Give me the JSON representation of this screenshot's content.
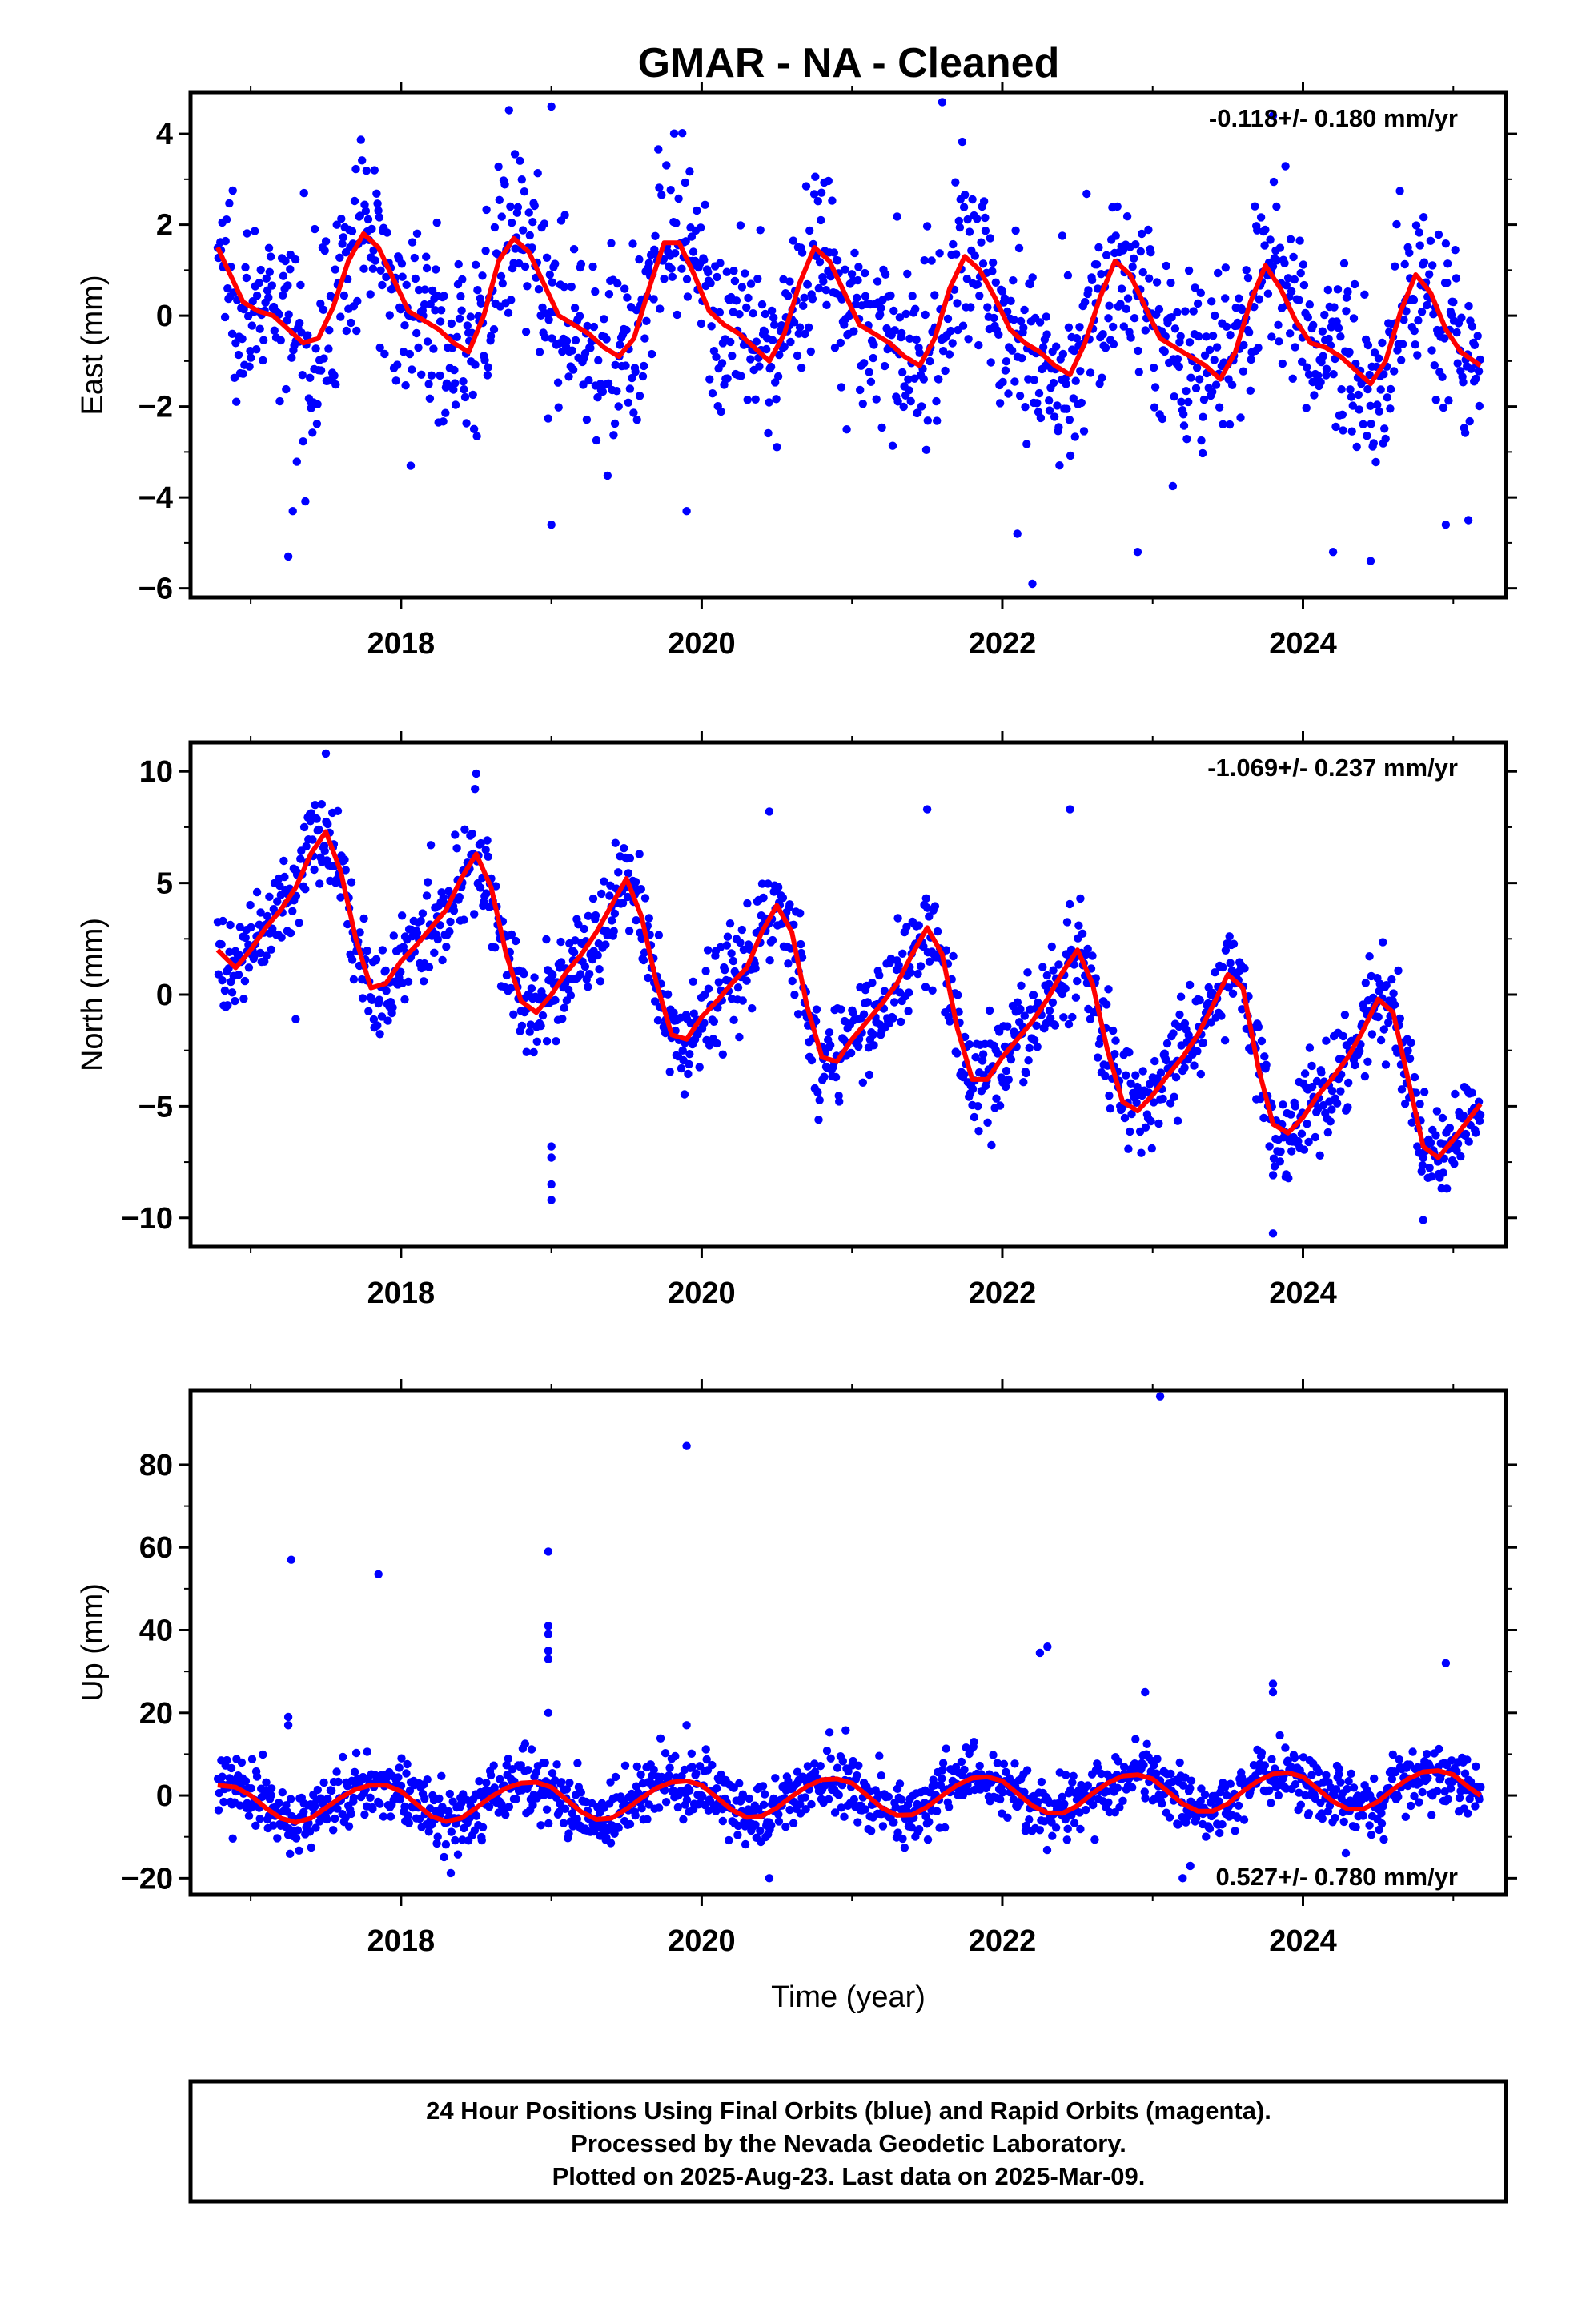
{
  "title": "GMAR  - NA - Cleaned",
  "colors": {
    "points": "#0000ff",
    "fit": "#ff0000",
    "axis": "#000000"
  },
  "footer": {
    "line1": "24 Hour Positions Using Final Orbits (blue) and Rapid Orbits (magenta).",
    "line2": "Processed by the Nevada Geodetic Laboratory.",
    "line3": "Plotted on 2025-Aug-23. Last data on 2025-Mar-09."
  },
  "chart_data": [
    {
      "type": "scatter",
      "component": "east",
      "ylabel": "East (mm)",
      "xlabel": "",
      "rate": "-0.118+/- 0.180 mm/yr",
      "rate_position": "top-right",
      "xlim": [
        2016.6,
        2025.35
      ],
      "ylim": [
        -6.2,
        4.9
      ],
      "xticks": [
        2018,
        2020,
        2022,
        2024
      ],
      "yticks": [
        -6,
        -4,
        -2,
        0,
        2,
        4
      ],
      "ytick_labels": [
        "−6",
        "−4",
        "−2",
        "0",
        "2",
        "4"
      ],
      "fit_line": {
        "x": [
          2016.78,
          2016.85,
          2016.95,
          2017.05,
          2017.15,
          2017.25,
          2017.35,
          2017.45,
          2017.55,
          2017.65,
          2017.75,
          2017.85,
          2017.95,
          2018.05,
          2018.15,
          2018.25,
          2018.35,
          2018.45,
          2018.55,
          2018.65,
          2018.75,
          2018.85,
          2018.95,
          2019.05,
          2019.15,
          2019.25,
          2019.35,
          2019.45,
          2019.55,
          2019.65,
          2019.75,
          2019.85,
          2019.95,
          2020.05,
          2020.15,
          2020.25,
          2020.35,
          2020.45,
          2020.55,
          2020.65,
          2020.75,
          2020.85,
          2020.95,
          2021.05,
          2021.15,
          2021.25,
          2021.35,
          2021.45,
          2021.55,
          2021.65,
          2021.75,
          2021.85,
          2021.95,
          2022.05,
          2022.15,
          2022.25,
          2022.35,
          2022.45,
          2022.55,
          2022.65,
          2022.75,
          2022.85,
          2022.95,
          2023.05,
          2023.15,
          2023.25,
          2023.35,
          2023.45,
          2023.55,
          2023.65,
          2023.75,
          2023.85,
          2023.95,
          2024.05,
          2024.15,
          2024.25,
          2024.35,
          2024.45,
          2024.55,
          2024.65,
          2024.75,
          2024.85,
          2024.95,
          2025.05,
          2025.18
        ],
        "y": [
          1.5,
          1.0,
          0.3,
          0.1,
          0.0,
          -0.3,
          -0.6,
          -0.5,
          0.2,
          1.2,
          1.8,
          1.5,
          0.8,
          0.1,
          -0.1,
          -0.3,
          -0.6,
          -0.8,
          0.0,
          1.2,
          1.7,
          1.4,
          0.7,
          0.0,
          -0.2,
          -0.4,
          -0.7,
          -0.9,
          -0.5,
          0.6,
          1.6,
          1.6,
          0.9,
          0.1,
          -0.2,
          -0.4,
          -0.7,
          -1.0,
          -0.4,
          0.7,
          1.5,
          1.2,
          0.5,
          -0.2,
          -0.4,
          -0.6,
          -0.9,
          -1.1,
          -0.5,
          0.6,
          1.3,
          1.0,
          0.4,
          -0.3,
          -0.6,
          -0.8,
          -1.1,
          -1.3,
          -0.6,
          0.4,
          1.2,
          0.9,
          0.2,
          -0.5,
          -0.7,
          -0.9,
          -1.1,
          -1.4,
          -0.8,
          0.3,
          1.1,
          0.6,
          -0.1,
          -0.6,
          -0.7,
          -0.9,
          -1.2,
          -1.5,
          -1.0,
          0.1,
          0.9,
          0.5,
          -0.3,
          -0.8,
          -1.1
        ]
      },
      "series": [
        {
          "name": "",
          "points": {
            "x_start": 2016.78,
            "x_end": 2025.18,
            "count": 1400,
            "seasonal_amplitude": 1.25,
            "seasonal_peak": 0.65,
            "trend": -0.118,
            "offset": 0.2,
            "scatter_sd": 1.0,
            "outliers": [
              [
                2017.25,
                -5.3
              ],
              [
                2017.28,
                -4.3
              ],
              [
                2019.0,
                -4.6
              ],
              [
                2019.9,
                -4.3
              ],
              [
                2019.0,
                4.6
              ],
              [
                2021.6,
                4.7
              ],
              [
                2022.2,
                -5.9
              ],
              [
                2022.1,
                -4.8
              ],
              [
                2022.9,
                -5.2
              ],
              [
                2024.2,
                -5.2
              ],
              [
                2024.45,
                -5.4
              ],
              [
                2024.95,
                -4.6
              ],
              [
                2025.1,
                -4.5
              ],
              [
                2023.8,
                4.4
              ]
            ]
          }
        }
      ]
    },
    {
      "type": "scatter",
      "component": "north",
      "ylabel": "North (mm)",
      "xlabel": "",
      "rate": "-1.069+/- 0.237 mm/yr",
      "rate_position": "top-right",
      "xlim": [
        2016.6,
        2025.35
      ],
      "ylim": [
        -11.3,
        11.3
      ],
      "xticks": [
        2018,
        2020,
        2022,
        2024
      ],
      "yticks": [
        -10,
        -5,
        0,
        5,
        10
      ],
      "ytick_labels": [
        "−10",
        "−5",
        "0",
        "5",
        "10"
      ],
      "fit_line": {
        "x": [
          2016.78,
          2016.9,
          2017.0,
          2017.1,
          2017.2,
          2017.3,
          2017.4,
          2017.5,
          2017.6,
          2017.7,
          2017.8,
          2017.9,
          2018.0,
          2018.1,
          2018.2,
          2018.3,
          2018.4,
          2018.5,
          2018.6,
          2018.7,
          2018.8,
          2018.9,
          2019.0,
          2019.1,
          2019.2,
          2019.3,
          2019.4,
          2019.5,
          2019.6,
          2019.7,
          2019.8,
          2019.9,
          2020.0,
          2020.1,
          2020.2,
          2020.3,
          2020.4,
          2020.5,
          2020.6,
          2020.7,
          2020.8,
          2020.9,
          2021.0,
          2021.1,
          2021.2,
          2021.3,
          2021.4,
          2021.5,
          2021.6,
          2021.7,
          2021.8,
          2021.9,
          2022.0,
          2022.1,
          2022.2,
          2022.3,
          2022.4,
          2022.5,
          2022.6,
          2022.7,
          2022.8,
          2022.9,
          2023.0,
          2023.1,
          2023.2,
          2023.3,
          2023.4,
          2023.5,
          2023.6,
          2023.7,
          2023.8,
          2023.9,
          2024.0,
          2024.1,
          2024.2,
          2024.3,
          2024.4,
          2024.5,
          2024.6,
          2024.7,
          2024.8,
          2024.9,
          2025.0,
          2025.1,
          2025.18
        ],
        "y": [
          2.0,
          1.2,
          2.0,
          3.0,
          3.8,
          4.8,
          6.3,
          7.3,
          5.5,
          2.5,
          0.3,
          0.5,
          1.5,
          2.2,
          3.0,
          3.8,
          5.2,
          6.3,
          4.8,
          1.8,
          -0.3,
          -0.8,
          0.0,
          1.0,
          1.8,
          2.8,
          4.0,
          5.2,
          3.5,
          0.5,
          -1.8,
          -2.0,
          -1.0,
          -0.3,
          0.5,
          1.2,
          2.8,
          4.0,
          2.8,
          -0.5,
          -2.8,
          -3.0,
          -2.0,
          -1.2,
          -0.4,
          0.5,
          1.8,
          3.0,
          1.8,
          -1.5,
          -3.8,
          -3.8,
          -2.8,
          -2.0,
          -1.2,
          -0.2,
          1.0,
          2.0,
          0.5,
          -2.5,
          -4.8,
          -5.2,
          -4.5,
          -3.6,
          -2.8,
          -1.8,
          -0.5,
          0.9,
          0.3,
          -3.2,
          -5.8,
          -6.2,
          -5.5,
          -4.5,
          -3.7,
          -2.8,
          -1.6,
          -0.2,
          -0.8,
          -3.8,
          -6.8,
          -7.3,
          -6.5,
          -5.6,
          -4.9
        ]
      },
      "series": [
        {
          "name": "",
          "points": {
            "x_start": 2016.78,
            "x_end": 2025.18,
            "count": 1400,
            "seasonal_amplitude": 4.0,
            "seasonal_peak": 0.45,
            "trend": -1.069,
            "offset": 2.2,
            "scatter_sd": 1.1,
            "outliers": [
              [
                2019.0,
                -6.8
              ],
              [
                2019.0,
                -7.3
              ],
              [
                2019.0,
                -8.5
              ],
              [
                2019.0,
                -9.2
              ],
              [
                2017.5,
                10.8
              ],
              [
                2018.5,
                9.9
              ],
              [
                2017.3,
                -1.1
              ],
              [
                2020.45,
                8.2
              ],
              [
                2021.5,
                8.3
              ],
              [
                2022.45,
                8.3
              ],
              [
                2023.8,
                -10.7
              ],
              [
                2024.8,
                -10.1
              ]
            ]
          }
        }
      ]
    },
    {
      "type": "scatter",
      "component": "up",
      "ylabel": "Up (mm)",
      "xlabel": "Time (year)",
      "rate": "0.527+/- 0.780 mm/yr",
      "rate_position": "bottom-right",
      "xlim": [
        2016.6,
        2025.35
      ],
      "ylim": [
        -24,
        98
      ],
      "xticks": [
        2018,
        2020,
        2022,
        2024
      ],
      "yticks": [
        -20,
        0,
        20,
        40,
        60,
        80
      ],
      "ytick_labels": [
        "−20",
        "0",
        "20",
        "40",
        "60",
        "80"
      ],
      "fit_line": {
        "x": [
          2016.78,
          2016.9,
          2017.0,
          2017.1,
          2017.2,
          2017.3,
          2017.4,
          2017.5,
          2017.6,
          2017.7,
          2017.8,
          2017.9,
          2018.0,
          2018.1,
          2018.2,
          2018.3,
          2018.4,
          2018.5,
          2018.6,
          2018.7,
          2018.8,
          2018.9,
          2019.0,
          2019.1,
          2019.2,
          2019.3,
          2019.4,
          2019.5,
          2019.6,
          2019.7,
          2019.8,
          2019.9,
          2020.0,
          2020.1,
          2020.2,
          2020.3,
          2020.4,
          2020.5,
          2020.6,
          2020.7,
          2020.8,
          2020.9,
          2021.0,
          2021.1,
          2021.2,
          2021.3,
          2021.4,
          2021.5,
          2021.6,
          2021.7,
          2021.8,
          2021.9,
          2022.0,
          2022.1,
          2022.2,
          2022.3,
          2022.4,
          2022.5,
          2022.6,
          2022.7,
          2022.8,
          2022.9,
          2023.0,
          2023.1,
          2023.2,
          2023.3,
          2023.4,
          2023.5,
          2023.6,
          2023.7,
          2023.8,
          2023.9,
          2024.0,
          2024.1,
          2024.2,
          2024.3,
          2024.4,
          2024.5,
          2024.6,
          2024.7,
          2024.8,
          2024.9,
          2025.0,
          2025.1,
          2025.18
        ],
        "y": [
          2.5,
          2.0,
          0.0,
          -3.0,
          -5.5,
          -6.5,
          -5.5,
          -3.0,
          -0.5,
          1.5,
          2.5,
          2.5,
          1.0,
          -2.0,
          -5.0,
          -6.3,
          -5.5,
          -3.0,
          -0.3,
          1.8,
          3.0,
          3.2,
          2.0,
          -1.0,
          -4.0,
          -5.8,
          -5.5,
          -3.3,
          -0.6,
          1.8,
          3.2,
          3.5,
          2.5,
          -0.5,
          -3.5,
          -5.3,
          -5.0,
          -3.0,
          -0.2,
          2.2,
          3.8,
          4.0,
          3.0,
          0.0,
          -3.0,
          -4.8,
          -4.7,
          -2.8,
          0.0,
          2.5,
          4.2,
          4.5,
          3.5,
          0.5,
          -2.5,
          -4.2,
          -4.3,
          -2.5,
          0.5,
          3.0,
          4.7,
          5.0,
          4.0,
          1.0,
          -2.0,
          -3.8,
          -3.8,
          -2.0,
          1.0,
          3.5,
          5.2,
          5.5,
          4.5,
          1.5,
          -1.5,
          -3.3,
          -3.3,
          -1.5,
          1.5,
          4.0,
          5.7,
          6.0,
          5.0,
          2.0,
          0.0
        ]
      },
      "series": [
        {
          "name": "",
          "points": {
            "x_start": 2016.78,
            "x_end": 2025.18,
            "count": 1400,
            "seasonal_amplitude": 5.0,
            "seasonal_peak": 0.85,
            "trend": 0.527,
            "offset": -1.5,
            "scatter_sd": 4.0,
            "outliers": [
              [
                2017.27,
                57.0
              ],
              [
                2017.85,
                53.5
              ],
              [
                2018.98,
                59.0
              ],
              [
                2018.98,
                41.0
              ],
              [
                2018.98,
                39.0
              ],
              [
                2018.98,
                35.0
              ],
              [
                2018.98,
                33.0
              ],
              [
                2018.98,
                20.0
              ],
              [
                2019.9,
                84.5
              ],
              [
                2022.25,
                34.5
              ],
              [
                2022.3,
                36.0
              ],
              [
                2023.05,
                96.5
              ],
              [
                2024.95,
                32.0
              ],
              [
                2017.25,
                19.0
              ],
              [
                2017.25,
                17.0
              ],
              [
                2019.9,
                17.0
              ],
              [
                2023.8,
                27.0
              ],
              [
                2023.8,
                25.0
              ],
              [
                2022.95,
                25.0
              ],
              [
                2023.2,
                -20.0
              ],
              [
                2020.45,
                -20.0
              ],
              [
                2023.25,
                -17.0
              ]
            ]
          }
        }
      ]
    }
  ]
}
